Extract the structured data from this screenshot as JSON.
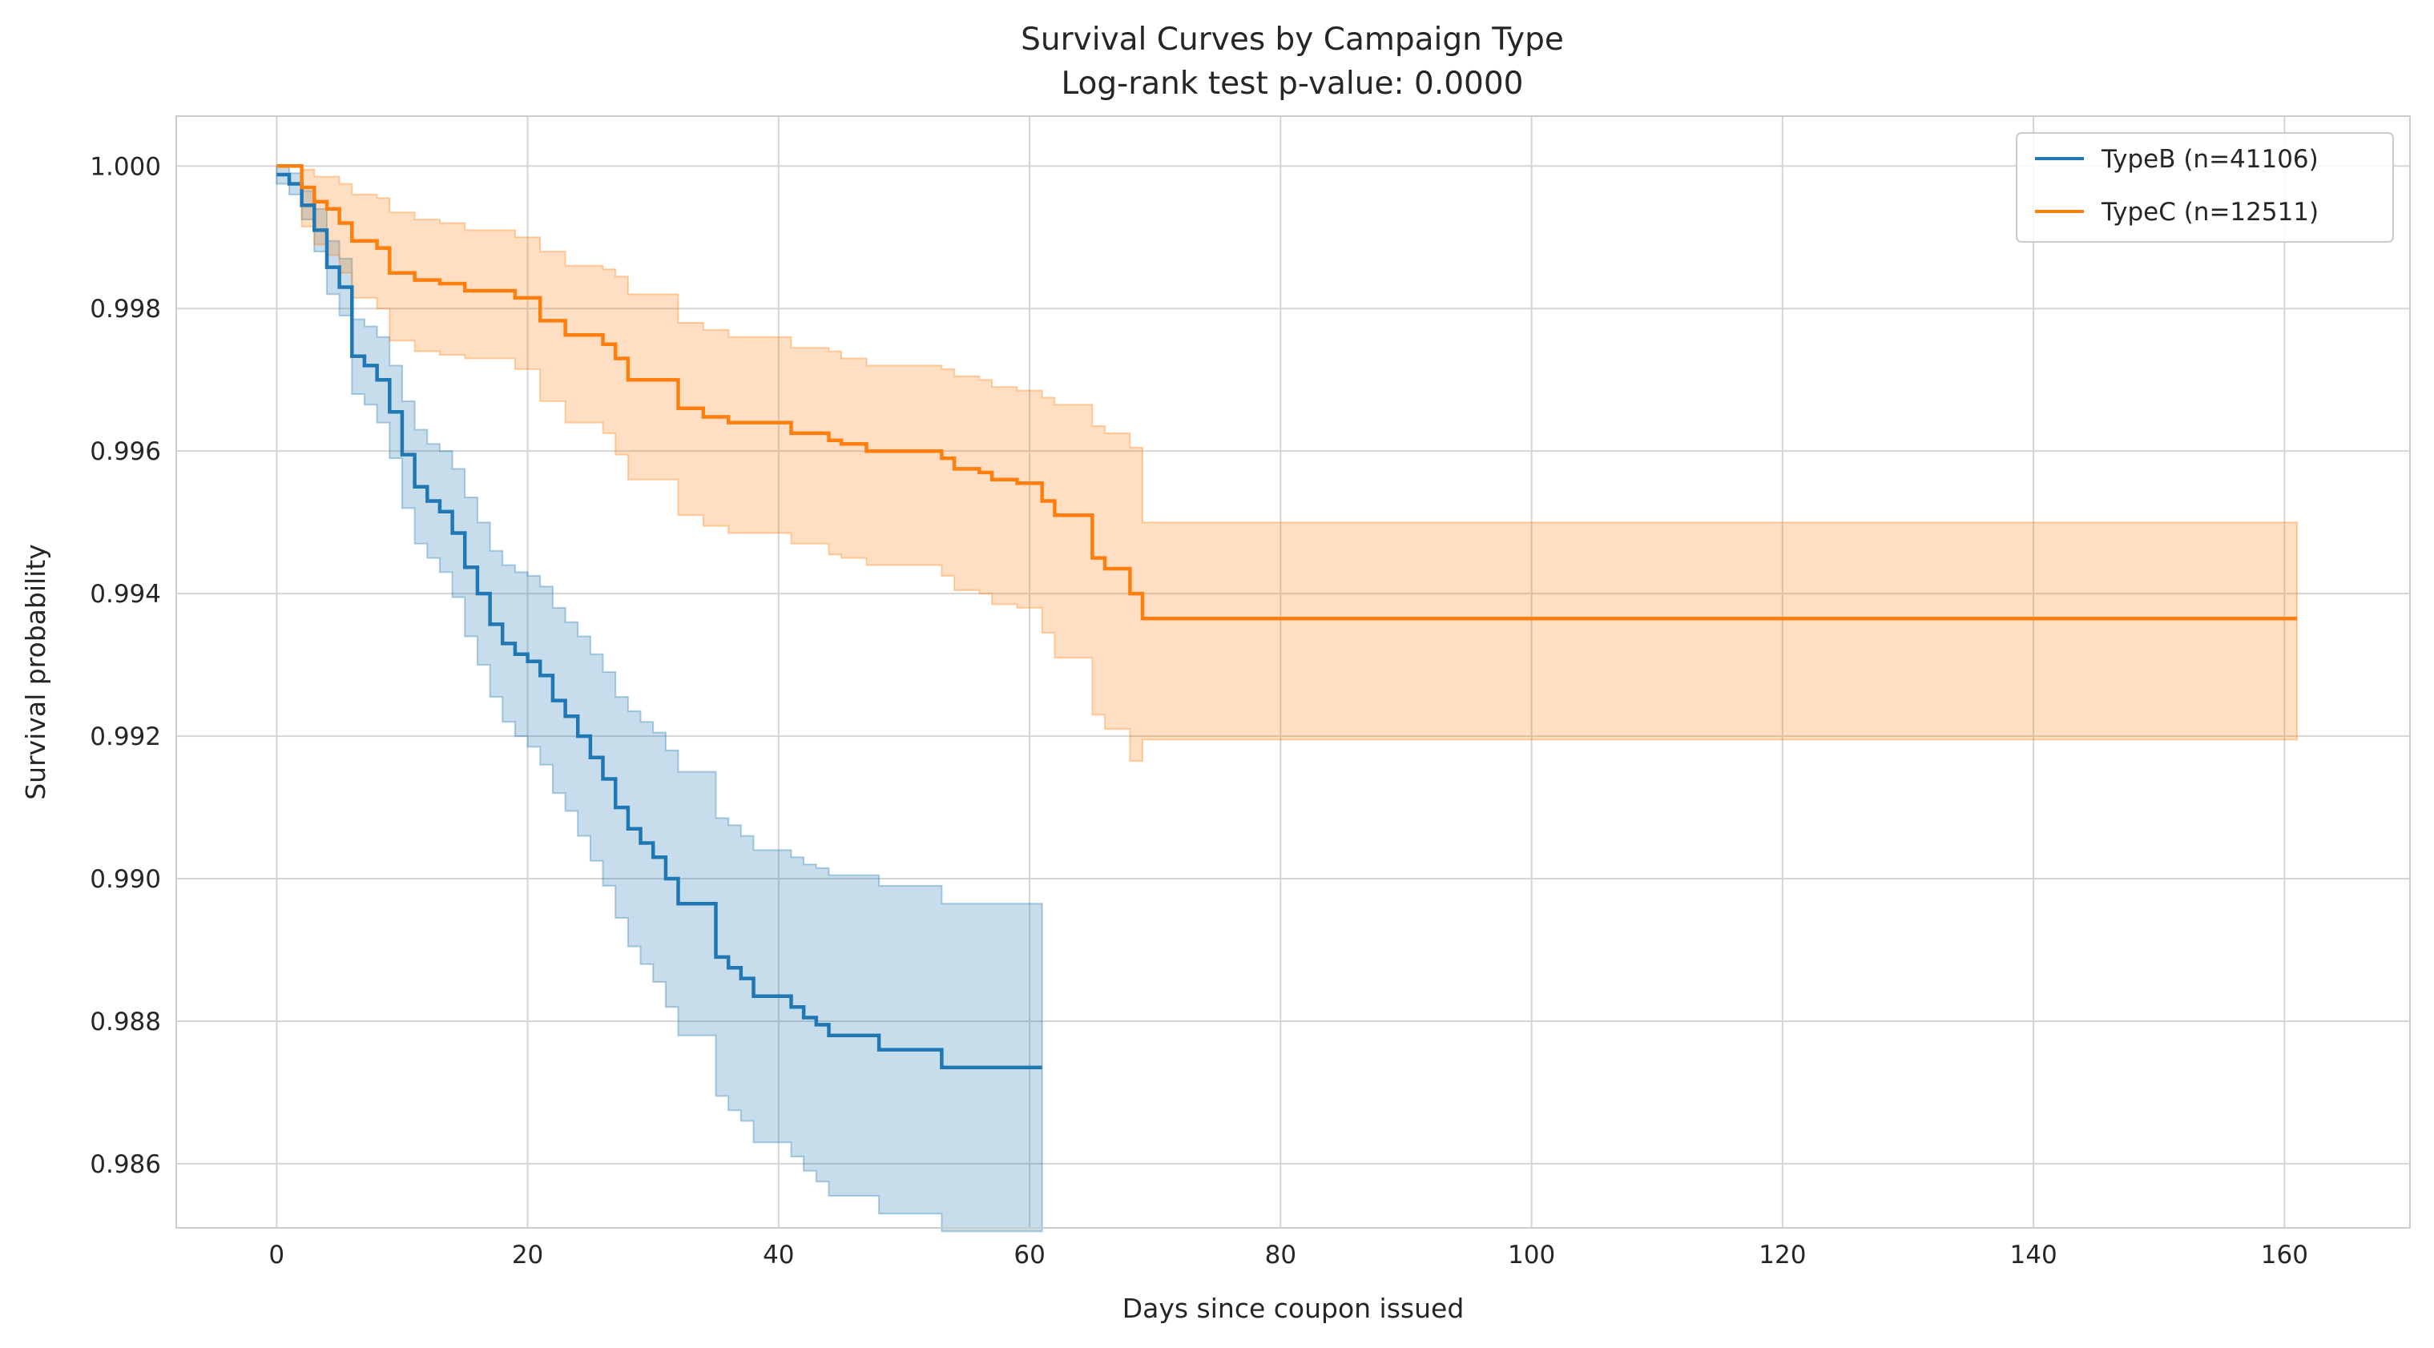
{
  "chart_data": {
    "type": "line",
    "subtype": "kaplan-meier step with confidence bands",
    "title": "Survival Curves by Campaign Type",
    "subtitle": "Log-rank test p-value: 0.0000",
    "xlabel": "Days since coupon issued",
    "ylabel": "Survival probability",
    "xlim": [
      -8,
      170
    ],
    "ylim": [
      0.9851,
      1.0007
    ],
    "xticks": [
      0,
      20,
      40,
      60,
      80,
      100,
      120,
      140,
      160
    ],
    "xtick_labels": [
      "0",
      "20",
      "40",
      "60",
      "80",
      "100",
      "120",
      "140",
      "160"
    ],
    "yticks": [
      0.986,
      0.988,
      0.99,
      0.992,
      0.994,
      0.996,
      0.998,
      1.0
    ],
    "ytick_labels": [
      "0.986",
      "0.988",
      "0.990",
      "0.992",
      "0.994",
      "0.996",
      "0.998",
      "1.000"
    ],
    "grid": true,
    "legend_position": "top-right",
    "series": [
      {
        "name": "TypeB (n=41106)",
        "color": "#1f77b4",
        "x": [
          0,
          1,
          2,
          3,
          4,
          5,
          6,
          7,
          8,
          9,
          10,
          11,
          12,
          13,
          14,
          15,
          16,
          17,
          18,
          19,
          20,
          21,
          22,
          23,
          24,
          25,
          26,
          27,
          28,
          29,
          30,
          31,
          32,
          35,
          36,
          37,
          38,
          41,
          42,
          43,
          44,
          48,
          53,
          61
        ],
        "y": [
          0.99988,
          0.99975,
          0.99945,
          0.9991,
          0.99858,
          0.9983,
          0.99733,
          0.9972,
          0.997,
          0.99655,
          0.99595,
          0.9955,
          0.9953,
          0.99515,
          0.99485,
          0.99437,
          0.994,
          0.99357,
          0.9933,
          0.99315,
          0.99305,
          0.99285,
          0.9925,
          0.99228,
          0.992,
          0.9917,
          0.9914,
          0.991,
          0.9907,
          0.9905,
          0.9903,
          0.99,
          0.98965,
          0.9889,
          0.98875,
          0.9886,
          0.98835,
          0.9882,
          0.98805,
          0.98795,
          0.9878,
          0.9876,
          0.98735,
          0.98735
        ],
        "lower": [
          0.99975,
          0.9996,
          0.99925,
          0.9988,
          0.9982,
          0.9979,
          0.9968,
          0.99665,
          0.9964,
          0.9959,
          0.9952,
          0.9947,
          0.9945,
          0.9943,
          0.99395,
          0.9934,
          0.993,
          0.99255,
          0.9922,
          0.992,
          0.99185,
          0.9916,
          0.9912,
          0.99095,
          0.9906,
          0.99025,
          0.9899,
          0.98945,
          0.98905,
          0.9888,
          0.98855,
          0.9882,
          0.9878,
          0.98695,
          0.98675,
          0.9866,
          0.9863,
          0.9861,
          0.9859,
          0.98575,
          0.98555,
          0.9853,
          0.98505,
          0.98505
        ],
        "upper": [
          1.0,
          0.9999,
          0.99965,
          0.9994,
          0.99895,
          0.9987,
          0.99785,
          0.99775,
          0.9976,
          0.9972,
          0.9967,
          0.9963,
          0.9961,
          0.996,
          0.99575,
          0.99535,
          0.995,
          0.9946,
          0.9944,
          0.9943,
          0.99425,
          0.9941,
          0.9938,
          0.9936,
          0.9934,
          0.99315,
          0.9929,
          0.99255,
          0.99235,
          0.9922,
          0.99205,
          0.9918,
          0.9915,
          0.99085,
          0.99075,
          0.9906,
          0.9904,
          0.9903,
          0.9902,
          0.99015,
          0.99005,
          0.9899,
          0.98965,
          0.98965
        ]
      },
      {
        "name": "TypeC (n=12511)",
        "color": "#ff7f0e",
        "x": [
          0,
          2,
          3,
          4,
          5,
          6,
          8,
          9,
          11,
          13,
          15,
          19,
          21,
          23,
          26,
          27,
          28,
          32,
          34,
          36,
          41,
          44,
          45,
          47,
          53,
          54,
          56,
          57,
          59,
          61,
          62,
          65,
          66,
          68,
          69,
          161
        ],
        "y": [
          1.0,
          0.9997,
          0.9995,
          0.9994,
          0.9992,
          0.99895,
          0.99885,
          0.9985,
          0.9984,
          0.99835,
          0.99825,
          0.99815,
          0.99783,
          0.99763,
          0.9975,
          0.9973,
          0.997,
          0.9966,
          0.99648,
          0.9964,
          0.99625,
          0.99615,
          0.9961,
          0.996,
          0.9959,
          0.99575,
          0.9957,
          0.9956,
          0.99555,
          0.9953,
          0.9951,
          0.9945,
          0.99435,
          0.994,
          0.99365,
          0.99365
        ],
        "lower": [
          1.0,
          0.99915,
          0.9989,
          0.99875,
          0.9985,
          0.99815,
          0.998,
          0.99755,
          0.9974,
          0.99735,
          0.9973,
          0.99715,
          0.9967,
          0.9964,
          0.99625,
          0.99595,
          0.9956,
          0.9951,
          0.99495,
          0.99485,
          0.9947,
          0.99455,
          0.9945,
          0.9944,
          0.99425,
          0.99405,
          0.994,
          0.99385,
          0.9938,
          0.99345,
          0.9931,
          0.9923,
          0.9921,
          0.99165,
          0.99195,
          0.99195
        ],
        "upper": [
          1.0,
          0.99995,
          0.99985,
          0.99985,
          0.99975,
          0.9996,
          0.99955,
          0.99935,
          0.99925,
          0.9992,
          0.9991,
          0.999,
          0.9988,
          0.9986,
          0.99855,
          0.99845,
          0.9982,
          0.9978,
          0.9977,
          0.9976,
          0.99745,
          0.9974,
          0.9973,
          0.9972,
          0.99715,
          0.99705,
          0.997,
          0.9969,
          0.99685,
          0.99675,
          0.99665,
          0.99635,
          0.99625,
          0.99605,
          0.995,
          0.995
        ]
      }
    ]
  }
}
